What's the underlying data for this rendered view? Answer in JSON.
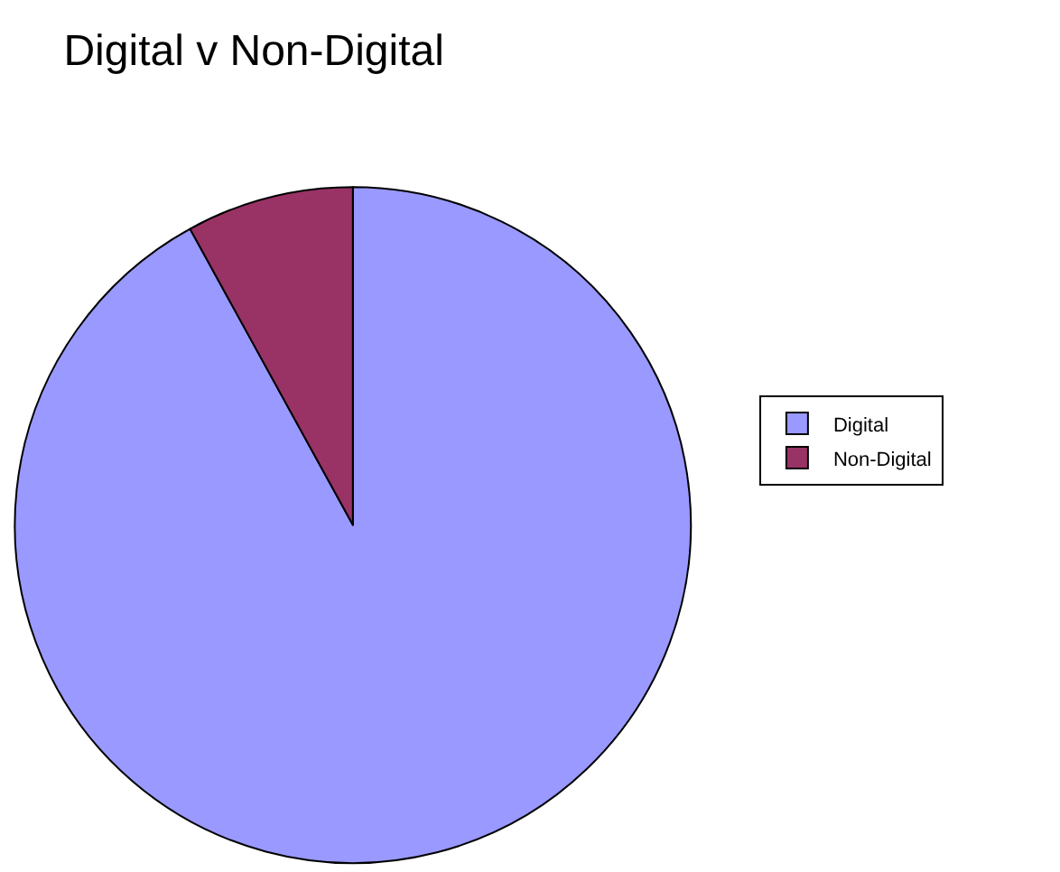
{
  "chart_data": {
    "type": "pie",
    "title": "Digital v Non-Digital",
    "categories": [
      "Digital",
      "Non-Digital"
    ],
    "values": [
      92,
      8
    ],
    "colors": [
      "#9999ff",
      "#993366"
    ],
    "legend": "right"
  }
}
